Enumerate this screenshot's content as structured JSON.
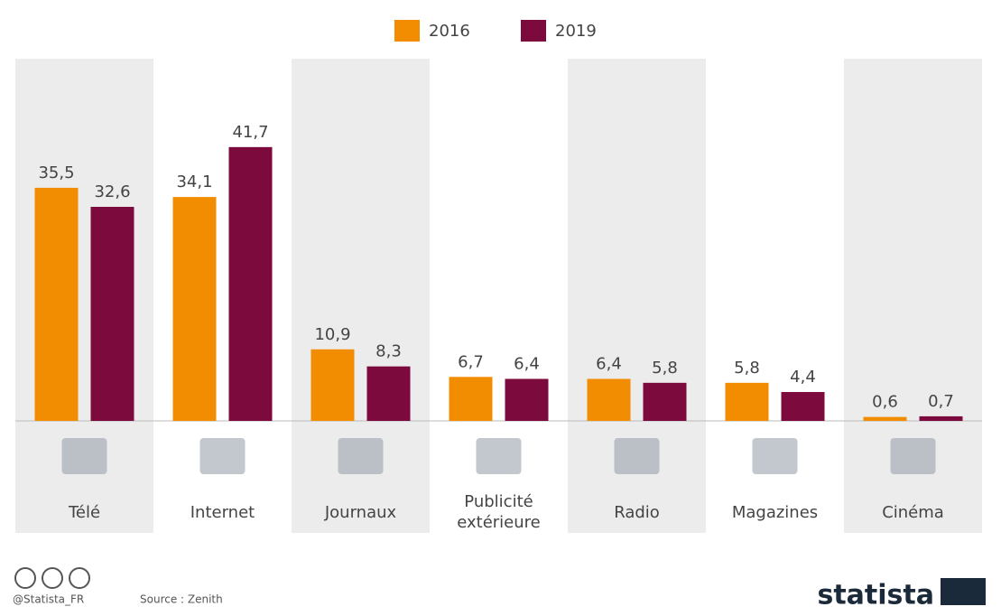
{
  "chart_data": {
    "type": "bar",
    "categories": [
      "Télé",
      "Internet",
      "Journaux",
      "Publicité extérieure",
      "Radio",
      "Magazines",
      "Cinéma"
    ],
    "series": [
      {
        "name": "2016",
        "color": "#f28c00",
        "values": [
          35.5,
          34.1,
          10.9,
          6.7,
          6.4,
          5.8,
          0.6
        ],
        "value_labels": [
          "35,5",
          "34,1",
          "10,9",
          "6,7",
          "6,4",
          "5,8",
          "0,6"
        ]
      },
      {
        "name": "2019",
        "color": "#7d0a3c",
        "values": [
          32.6,
          41.7,
          8.3,
          6.4,
          5.8,
          4.4,
          0.7
        ],
        "value_labels": [
          "32,6",
          "41,7",
          "8,3",
          "6,4",
          "5,8",
          "4,4",
          "0,7"
        ]
      }
    ],
    "legend": "top",
    "credit": "@Statista_FR",
    "source": "Source : Zenith",
    "brand": "statista"
  }
}
